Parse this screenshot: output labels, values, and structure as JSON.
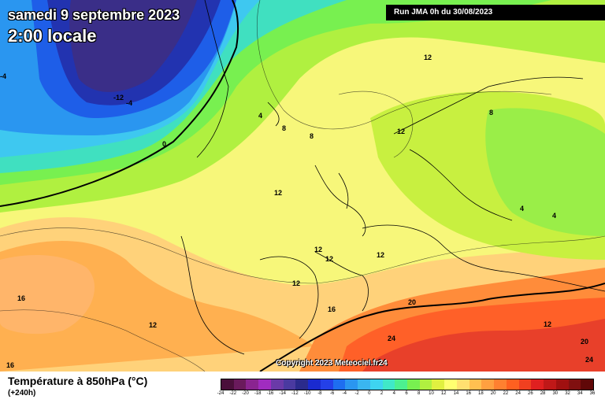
{
  "title": {
    "date": "samedi 9 septembre 2023",
    "time": "2:00 locale"
  },
  "run_info": "Run JMA 0h du 30/08/2023",
  "copyright": "Copyright 2023 Meteociel.fr24",
  "legend": {
    "title": "Température à 850hPa (°C)",
    "subtitle": "(+240h)",
    "ticks": [
      "-24",
      "-22",
      "-20",
      "-18",
      "-16",
      "-14",
      "-12",
      "-10",
      "-8",
      "-6",
      "-4",
      "-2",
      "0",
      "2",
      "4",
      "6",
      "8",
      "10",
      "12",
      "14",
      "16",
      "18",
      "20",
      "22",
      "24",
      "26",
      "28",
      "30",
      "32",
      "34",
      "36"
    ],
    "colors": [
      "#4a0f3a",
      "#6a1a5c",
      "#8a2490",
      "#a02cc0",
      "#6a3aa8",
      "#4a3aa0",
      "#2b2b8c",
      "#1a2ad0",
      "#2440e8",
      "#1e6ef0",
      "#2a96f0",
      "#3ab6f0",
      "#3ed4f0",
      "#40e8c8",
      "#4cf090",
      "#78f050",
      "#b0f040",
      "#e0f040",
      "#ffff70",
      "#ffe070",
      "#ffc050",
      "#ffa040",
      "#ff8030",
      "#ff6020",
      "#f04020",
      "#e02020",
      "#c01818",
      "#a01010",
      "#801010",
      "#600808"
    ]
  },
  "contour_labels": [
    "0",
    "-4",
    "-12",
    "-4",
    "4",
    "8",
    "8",
    "12",
    "12",
    "12",
    "12",
    "12",
    "12",
    "8",
    "4",
    "4",
    "12",
    "16",
    "16",
    "20",
    "24",
    "20",
    "24",
    "16",
    "12",
    "12"
  ]
}
